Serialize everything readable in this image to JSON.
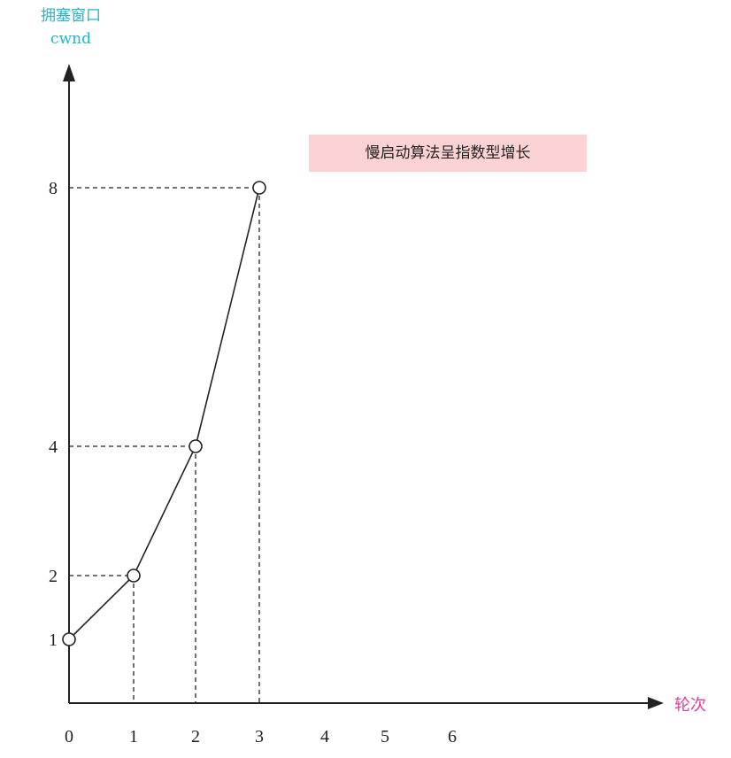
{
  "chart_data": {
    "type": "line",
    "ylabel_cn": "拥塞窗口",
    "ylabel_en": "cwnd",
    "xlabel": "轮次",
    "annotation": "慢启动算法呈指数型增长",
    "x_ticks": [
      "0",
      "1",
      "2",
      "3",
      "4",
      "5",
      "6"
    ],
    "y_ticks": [
      "1",
      "2",
      "4",
      "8"
    ],
    "xlim": [
      0,
      6
    ],
    "series": [
      {
        "x": [
          0,
          1,
          2,
          3
        ],
        "y": [
          1,
          2,
          4,
          8
        ]
      }
    ],
    "grid": false,
    "colors": {
      "ylabel": "#1fb8c8",
      "xlabel": "#e0409a",
      "annotation_bg": "#fbd3d4",
      "line": "#222222"
    }
  }
}
